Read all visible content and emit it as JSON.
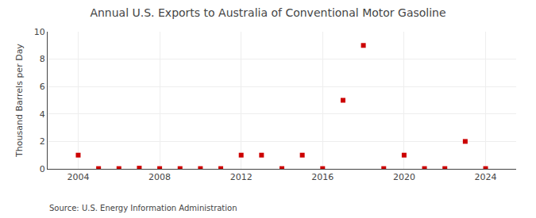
{
  "chart_data": {
    "type": "scatter",
    "title": "Annual U.S. Exports to Australia of Conventional Motor Gasoline",
    "ylabel": "Thousand Barrels per Day",
    "annotations": [
      "Source: U.S. Energy Information Administration"
    ],
    "x": [
      2004,
      2005,
      2006,
      2007,
      2008,
      2009,
      2010,
      2011,
      2012,
      2013,
      2014,
      2015,
      2016,
      2017,
      2018,
      2019,
      2020,
      2021,
      2022,
      2023,
      2024
    ],
    "values": [
      1.0,
      0.02,
      0.02,
      0.05,
      0.02,
      0.02,
      0.02,
      0.02,
      1.0,
      1.0,
      0.02,
      1.0,
      0.02,
      5.0,
      9.0,
      0.02,
      1.0,
      0.02,
      0.02,
      2.0,
      0.02
    ],
    "color": "#cc0000",
    "marker": "square",
    "xlim": [
      2002.5,
      2025.5
    ],
    "xticks": [
      2004,
      2008,
      2012,
      2016,
      2020,
      2024
    ],
    "ylim": [
      0,
      10
    ],
    "yticks": [
      0,
      2,
      4,
      6,
      8,
      10
    ],
    "grid": true
  }
}
